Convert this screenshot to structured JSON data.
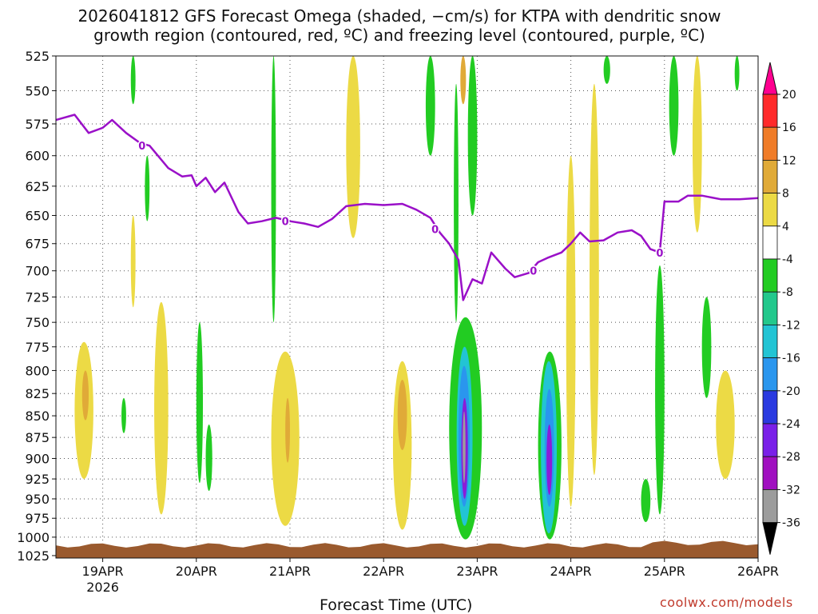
{
  "chart_data": {
    "type": "heatmap",
    "title": "2026041812 GFS Forecast Omega (shaded, −cm/s) for KTPA with dendritic snow\ngrowth region (contoured, red, ºC) and freezing level (contoured, purple, ºC)",
    "xlabel": "Forecast Time (UTC)",
    "ylabel": "Pressure (hPa)",
    "credit": "coolwx.com/models",
    "x_ticks": [
      "19APR",
      "20APR",
      "21APR",
      "22APR",
      "23APR",
      "24APR",
      "25APR",
      "26APR"
    ],
    "x_year_label": "2026",
    "y_ticks": [
      525,
      550,
      575,
      600,
      625,
      650,
      675,
      700,
      725,
      750,
      775,
      800,
      825,
      850,
      875,
      900,
      925,
      950,
      975,
      1000,
      1025
    ],
    "x_range_days": [
      -0.5,
      7.0
    ],
    "colorbar": {
      "labels": [
        20,
        16,
        12,
        8,
        4,
        -4,
        -8,
        -12,
        -16,
        -20,
        -24,
        -28,
        -32,
        -36
      ],
      "colors": [
        "#ff0090",
        "#ff2a2a",
        "#f07c28",
        "#e0aa38",
        "#ecda45",
        "#ffffff",
        "#22cc22",
        "#22c88c",
        "#22c4d4",
        "#2a96ee",
        "#2a3ae0",
        "#7a20e8",
        "#a010c0",
        "#9c9c9c",
        "#000000"
      ]
    },
    "freezing_level_label": "0",
    "freezing_level_hpa": [
      [
        -0.5,
        572
      ],
      [
        -0.3,
        568
      ],
      [
        -0.15,
        582
      ],
      [
        0.0,
        578
      ],
      [
        0.1,
        572
      ],
      [
        0.25,
        582
      ],
      [
        0.4,
        590
      ],
      [
        0.5,
        592
      ],
      [
        0.7,
        610
      ],
      [
        0.85,
        617
      ],
      [
        0.95,
        616
      ],
      [
        1.0,
        625
      ],
      [
        1.1,
        618
      ],
      [
        1.2,
        630
      ],
      [
        1.3,
        622
      ],
      [
        1.45,
        647
      ],
      [
        1.55,
        657
      ],
      [
        1.7,
        655
      ],
      [
        1.85,
        652
      ],
      [
        2.0,
        655
      ],
      [
        2.15,
        657
      ],
      [
        2.3,
        660
      ],
      [
        2.45,
        653
      ],
      [
        2.6,
        642
      ],
      [
        2.8,
        640
      ],
      [
        3.0,
        641
      ],
      [
        3.2,
        640
      ],
      [
        3.35,
        645
      ],
      [
        3.5,
        652
      ],
      [
        3.6,
        665
      ],
      [
        3.7,
        675
      ],
      [
        3.8,
        690
      ],
      [
        3.85,
        728
      ],
      [
        3.95,
        708
      ],
      [
        4.05,
        712
      ],
      [
        4.15,
        683
      ],
      [
        4.3,
        698
      ],
      [
        4.4,
        706
      ],
      [
        4.55,
        702
      ],
      [
        4.65,
        692
      ],
      [
        4.75,
        688
      ],
      [
        4.9,
        683
      ],
      [
        5.0,
        675
      ],
      [
        5.1,
        665
      ],
      [
        5.2,
        673
      ],
      [
        5.35,
        672
      ],
      [
        5.5,
        665
      ],
      [
        5.65,
        663
      ],
      [
        5.75,
        668
      ],
      [
        5.85,
        680
      ],
      [
        5.95,
        683
      ],
      [
        6.0,
        638
      ],
      [
        6.15,
        638
      ],
      [
        6.25,
        633
      ],
      [
        6.4,
        633
      ],
      [
        6.6,
        636
      ],
      [
        6.8,
        636
      ],
      [
        7.0,
        635
      ]
    ],
    "omega_regions": [
      {
        "level": "green",
        "x": [
          3.7,
          4.05
        ],
        "p": [
          1003,
          745
        ]
      },
      {
        "level": "cyan",
        "x": [
          3.78,
          3.95
        ],
        "p": [
          985,
          775
        ]
      },
      {
        "level": "blue",
        "x": [
          3.8,
          3.92
        ],
        "p": [
          960,
          795
        ]
      },
      {
        "level": "purple",
        "x": [
          3.83,
          3.9
        ],
        "p": [
          950,
          830
        ]
      },
      {
        "level": "gray",
        "x": [
          3.845,
          3.875
        ],
        "p": [
          930,
          845
        ]
      },
      {
        "level": "green",
        "x": [
          4.65,
          4.9
        ],
        "p": [
          1003,
          780
        ]
      },
      {
        "level": "cyan",
        "x": [
          4.68,
          4.85
        ],
        "p": [
          995,
          790
        ]
      },
      {
        "level": "blue",
        "x": [
          4.72,
          4.82
        ],
        "p": [
          960,
          820
        ]
      },
      {
        "level": "purple",
        "x": [
          4.74,
          4.8
        ],
        "p": [
          945,
          860
        ]
      },
      {
        "level": "green",
        "x": [
          5.9,
          6.0
        ],
        "p": [
          970,
          695
        ]
      },
      {
        "level": "green",
        "x": [
          5.75,
          5.85
        ],
        "p": [
          980,
          925
        ]
      },
      {
        "level": "green",
        "x": [
          6.05,
          6.15
        ],
        "p": [
          600,
          525
        ]
      },
      {
        "level": "green",
        "x": [
          6.4,
          6.5
        ],
        "p": [
          830,
          725
        ]
      },
      {
        "level": "green",
        "x": [
          6.75,
          6.8
        ],
        "p": [
          550,
          525
        ]
      },
      {
        "level": "green",
        "x": [
          0.45,
          0.5
        ],
        "p": [
          655,
          600
        ]
      },
      {
        "level": "green",
        "x": [
          0.3,
          0.35
        ],
        "p": [
          560,
          525
        ]
      },
      {
        "level": "green",
        "x": [
          1.0,
          1.07
        ],
        "p": [
          930,
          750
        ]
      },
      {
        "level": "green",
        "x": [
          1.1,
          1.17
        ],
        "p": [
          940,
          860
        ]
      },
      {
        "level": "green",
        "x": [
          2.0,
          2.05
        ],
        "p": [
          930,
          860
        ]
      },
      {
        "level": "green",
        "x": [
          3.45,
          3.55
        ],
        "p": [
          600,
          525
        ]
      },
      {
        "level": "green",
        "x": [
          3.75,
          3.8
        ],
        "p": [
          750,
          545
        ]
      },
      {
        "level": "green",
        "x": [
          3.9,
          4.0
        ],
        "p": [
          650,
          525
        ]
      },
      {
        "level": "green",
        "x": [
          5.35,
          5.42
        ],
        "p": [
          545,
          525
        ]
      },
      {
        "level": "green",
        "x": [
          1.8,
          1.85
        ],
        "p": [
          750,
          525
        ]
      },
      {
        "level": "green",
        "x": [
          0.2,
          0.25
        ],
        "p": [
          870,
          830
        ]
      },
      {
        "level": "yellow",
        "x": [
          -0.3,
          -0.1
        ],
        "p": [
          925,
          770
        ]
      },
      {
        "level": "yellow",
        "x": [
          0.3,
          0.35
        ],
        "p": [
          735,
          650
        ]
      },
      {
        "level": "yellow",
        "x": [
          0.55,
          0.7
        ],
        "p": [
          970,
          730
        ]
      },
      {
        "level": "yellow",
        "x": [
          1.8,
          2.1
        ],
        "p": [
          985,
          780
        ]
      },
      {
        "level": "yellow",
        "x": [
          2.6,
          2.75
        ],
        "p": [
          670,
          525
        ]
      },
      {
        "level": "yellow",
        "x": [
          3.1,
          3.3
        ],
        "p": [
          990,
          790
        ]
      },
      {
        "level": "yellow",
        "x": [
          5.2,
          5.3
        ],
        "p": [
          920,
          545
        ]
      },
      {
        "level": "yellow",
        "x": [
          4.95,
          5.05
        ],
        "p": [
          960,
          600
        ]
      },
      {
        "level": "yellow",
        "x": [
          6.55,
          6.75
        ],
        "p": [
          925,
          800
        ]
      },
      {
        "level": "yellow",
        "x": [
          6.3,
          6.4
        ],
        "p": [
          665,
          525
        ]
      },
      {
        "level": "orange",
        "x": [
          3.82,
          3.88
        ],
        "p": [
          560,
          525
        ]
      },
      {
        "level": "orange",
        "x": [
          -0.22,
          -0.15
        ],
        "p": [
          855,
          800
        ]
      },
      {
        "level": "orange",
        "x": [
          1.95,
          2.0
        ],
        "p": [
          905,
          830
        ]
      },
      {
        "level": "orange",
        "x": [
          3.15,
          3.25
        ],
        "p": [
          890,
          810
        ]
      }
    ]
  }
}
